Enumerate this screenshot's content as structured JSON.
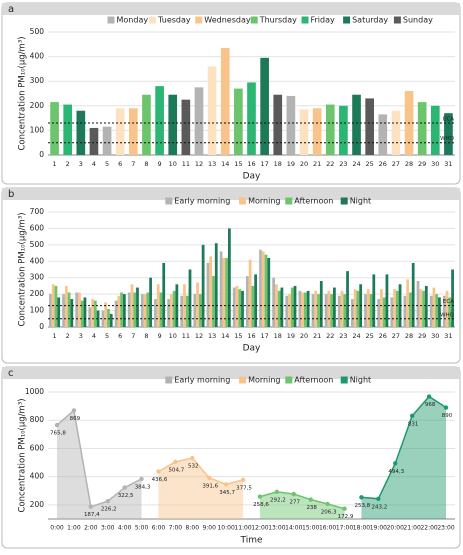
{
  "chart_data": [
    {
      "type": "bar",
      "panel": "a",
      "xlabel": "Day",
      "ylabel": "Concentration PM₁₀(μg/m³)",
      "categories": [
        "1",
        "2",
        "3",
        "4",
        "5",
        "6",
        "7",
        "8",
        "9",
        "10",
        "11",
        "12",
        "13",
        "14",
        "15",
        "16",
        "17",
        "18",
        "19",
        "20",
        "21",
        "22",
        "23",
        "24",
        "25",
        "26",
        "27",
        "28",
        "29",
        "30",
        "31"
      ],
      "series": [
        {
          "name": "Monday",
          "color": "#b3b3b3",
          "values": [
            null,
            null,
            null,
            null,
            115,
            null,
            null,
            null,
            null,
            null,
            null,
            275,
            null,
            null,
            null,
            null,
            null,
            null,
            240,
            null,
            null,
            null,
            null,
            null,
            null,
            165,
            null,
            null,
            null,
            null,
            null
          ]
        },
        {
          "name": "Tuesday",
          "color": "#fde2c2",
          "values": [
            null,
            null,
            null,
            null,
            null,
            190,
            null,
            null,
            null,
            null,
            null,
            null,
            360,
            null,
            null,
            null,
            null,
            null,
            null,
            185,
            null,
            null,
            null,
            null,
            null,
            null,
            180,
            null,
            null,
            null,
            null
          ]
        },
        {
          "name": "Wednesday",
          "color": "#f8c48a",
          "values": [
            null,
            null,
            null,
            null,
            null,
            null,
            190,
            null,
            null,
            null,
            null,
            null,
            null,
            435,
            null,
            null,
            null,
            null,
            null,
            null,
            190,
            null,
            null,
            null,
            null,
            null,
            null,
            260,
            null,
            null,
            null
          ]
        },
        {
          "name": "Thursday",
          "color": "#6cc56c",
          "values": [
            215,
            null,
            null,
            null,
            null,
            null,
            null,
            245,
            null,
            null,
            null,
            null,
            null,
            null,
            270,
            null,
            null,
            null,
            null,
            null,
            null,
            205,
            null,
            null,
            null,
            null,
            null,
            null,
            215,
            null,
            null
          ]
        },
        {
          "name": "Friday",
          "color": "#2cb673",
          "values": [
            null,
            205,
            null,
            null,
            null,
            null,
            null,
            null,
            280,
            null,
            null,
            null,
            null,
            null,
            null,
            295,
            null,
            null,
            null,
            null,
            null,
            null,
            200,
            null,
            null,
            null,
            null,
            null,
            null,
            200,
            null
          ]
        },
        {
          "name": "Saturday",
          "color": "#1d7a59",
          "values": [
            null,
            null,
            180,
            null,
            null,
            null,
            null,
            null,
            null,
            245,
            null,
            null,
            null,
            null,
            null,
            null,
            395,
            null,
            null,
            null,
            null,
            null,
            null,
            245,
            null,
            null,
            null,
            null,
            null,
            null,
            170
          ]
        },
        {
          "name": "Sunday",
          "color": "#5a5a5a",
          "values": [
            null,
            null,
            null,
            110,
            null,
            null,
            null,
            null,
            null,
            null,
            225,
            null,
            null,
            null,
            null,
            null,
            null,
            245,
            null,
            null,
            null,
            null,
            null,
            null,
            230,
            null,
            null,
            null,
            null,
            null,
            null
          ]
        }
      ],
      "ylim": [
        0,
        500
      ],
      "yticks": [
        0,
        100,
        200,
        300,
        400,
        500
      ],
      "reference_lines": [
        {
          "value": 130,
          "label": "ECA"
        },
        {
          "value": 50,
          "label": "WHO"
        }
      ]
    },
    {
      "type": "grouped-bar",
      "panel": "b",
      "xlabel": "Day",
      "ylabel": "Concentration PM₁₀(μg/m³)",
      "categories": [
        "1",
        "2",
        "3",
        "4",
        "5",
        "6",
        "7",
        "8",
        "9",
        "10",
        "11",
        "12",
        "13",
        "14",
        "15",
        "16",
        "17",
        "18",
        "19",
        "20",
        "21",
        "22",
        "23",
        "24",
        "25",
        "26",
        "27",
        "28",
        "29",
        "30",
        "31"
      ],
      "series": [
        {
          "name": "Early morning",
          "color": "#b3b3b3",
          "values": [
            200,
            200,
            210,
            120,
            100,
            160,
            210,
            200,
            170,
            170,
            190,
            200,
            390,
            460,
            240,
            310,
            470,
            300,
            190,
            220,
            200,
            200,
            190,
            170,
            200,
            170,
            180,
            190,
            280,
            190,
            190
          ]
        },
        {
          "name": "Morning",
          "color": "#f8c48a",
          "values": [
            260,
            250,
            210,
            170,
            150,
            190,
            260,
            200,
            260,
            200,
            260,
            270,
            430,
            420,
            250,
            410,
            460,
            260,
            200,
            210,
            220,
            220,
            220,
            230,
            230,
            230,
            230,
            290,
            230,
            240,
            220
          ]
        },
        {
          "name": "Afternoon",
          "color": "#6cc56c",
          "values": [
            250,
            210,
            160,
            160,
            110,
            210,
            210,
            210,
            210,
            220,
            190,
            200,
            310,
            420,
            230,
            250,
            440,
            220,
            240,
            210,
            200,
            200,
            200,
            220,
            200,
            180,
            220,
            210,
            220,
            200,
            180
          ]
        },
        {
          "name": "Night",
          "color": "#1d7a59",
          "values": [
            180,
            170,
            180,
            100,
            80,
            200,
            240,
            300,
            390,
            260,
            350,
            500,
            510,
            600,
            220,
            320,
            420,
            240,
            250,
            220,
            280,
            240,
            340,
            260,
            320,
            320,
            260,
            390,
            250,
            180,
            350
          ]
        }
      ],
      "ylim": [
        0,
        700
      ],
      "yticks": [
        0,
        100,
        200,
        300,
        400,
        500,
        600,
        700
      ],
      "reference_lines": [
        {
          "value": 130,
          "label": "ECA"
        },
        {
          "value": 50,
          "label": "WHO"
        }
      ]
    },
    {
      "type": "area",
      "panel": "c",
      "xlabel": "Time",
      "ylabel": "Concentration PM₁₀(μg/m³)",
      "categories": [
        "0:00",
        "1:00",
        "2:00",
        "3:00",
        "4:00",
        "5:00",
        "6:00",
        "7:00",
        "8:00",
        "9:00",
        "10:00",
        "11:00",
        "12:00",
        "13:00",
        "14:00",
        "15:00",
        "16:00",
        "17:00",
        "18:00",
        "19:00",
        "20:00",
        "21:00",
        "22:00",
        "23:00"
      ],
      "series": [
        {
          "name": "Early morning",
          "color": "#b3b3b3",
          "values": [
            765.8,
            869,
            187.4,
            226.2,
            322.5,
            384.3,
            null,
            null,
            null,
            null,
            null,
            null,
            null,
            null,
            null,
            null,
            null,
            null,
            null,
            null,
            null,
            null,
            null,
            null
          ],
          "value_labels": [
            "765,8",
            "869",
            "187,4",
            "226,2",
            "322,5",
            "384,3",
            null,
            null,
            null,
            null,
            null,
            null,
            null,
            null,
            null,
            null,
            null,
            null,
            null,
            null,
            null,
            null,
            null,
            null
          ]
        },
        {
          "name": "Morning",
          "color": "#f8c48a",
          "values": [
            null,
            null,
            null,
            null,
            null,
            null,
            436.6,
            504.7,
            532,
            391.6,
            345.7,
            377.5,
            null,
            null,
            null,
            null,
            null,
            null,
            null,
            null,
            null,
            null,
            null,
            null
          ],
          "value_labels": [
            null,
            null,
            null,
            null,
            null,
            null,
            "436,6",
            "504,7",
            "532",
            "391,6",
            "345,7",
            "377,5",
            null,
            null,
            null,
            null,
            null,
            null,
            null,
            null,
            null,
            null,
            null,
            null
          ]
        },
        {
          "name": "Afternoon",
          "color": "#6cc56c",
          "values": [
            null,
            null,
            null,
            null,
            null,
            null,
            null,
            null,
            null,
            null,
            null,
            null,
            258.6,
            292.2,
            277,
            238,
            206.3,
            172.9,
            null,
            null,
            null,
            null,
            null,
            null
          ],
          "value_labels": [
            null,
            null,
            null,
            null,
            null,
            null,
            null,
            null,
            null,
            null,
            null,
            null,
            "258,6",
            "292,2",
            "277",
            "238",
            "206,3",
            "172,9",
            null,
            null,
            null,
            null,
            null,
            null
          ]
        },
        {
          "name": "Night",
          "color": "#1d9a6c",
          "values": [
            null,
            null,
            null,
            null,
            null,
            null,
            null,
            null,
            null,
            null,
            null,
            null,
            null,
            null,
            null,
            null,
            null,
            null,
            253.8,
            243.2,
            494.3,
            831,
            968,
            890
          ],
          "value_labels": [
            null,
            null,
            null,
            null,
            null,
            null,
            null,
            null,
            null,
            null,
            null,
            null,
            null,
            null,
            null,
            null,
            null,
            null,
            "253,8",
            "243,2",
            "494,3",
            "831",
            "968",
            "890"
          ]
        }
      ],
      "ylim": [
        100,
        1000
      ],
      "yticks": [
        200,
        400,
        600,
        800,
        1000
      ]
    }
  ]
}
